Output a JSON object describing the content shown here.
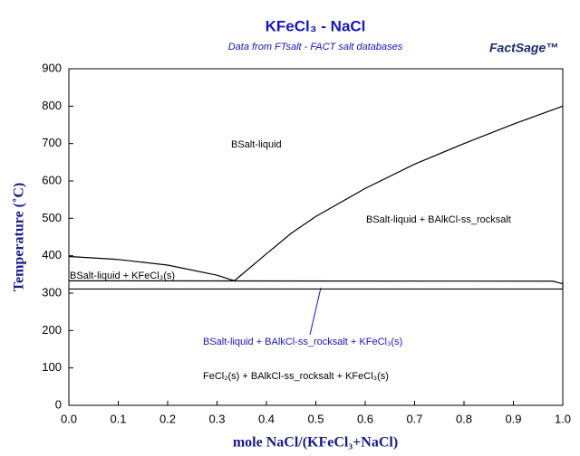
{
  "chart_data": {
    "type": "line",
    "title": "KFeCl₃ - NaCl",
    "subtitle": "Data from FTsalt - FACT salt databases",
    "logo": "FactSage™",
    "xlabel": "mole NaCl/(KFeCl₃+NaCl)",
    "ylabel": "Temperature (˚C)",
    "xlim": [
      0,
      1
    ],
    "ylim": [
      0,
      900
    ],
    "xticks": [
      {
        "value": 0,
        "label": "0.0"
      },
      0.1,
      0.2,
      0.3,
      0.4,
      0.5,
      0.6,
      0.7,
      0.8,
      0.9,
      {
        "value": 1,
        "label": "1.0"
      }
    ],
    "yticks": [
      0,
      100,
      200,
      300,
      400,
      500,
      600,
      700,
      800,
      900
    ],
    "series": [
      {
        "color": "#000000",
        "x": [
          0,
          0.1,
          0.2,
          0.3,
          0.335
        ],
        "values": [
          398,
          390,
          375,
          348,
          333
        ]
      },
      {
        "color": "#000000",
        "x": [
          0.335,
          0.4,
          0.45,
          0.5,
          0.6,
          0.7,
          0.8,
          0.9,
          1.0
        ],
        "values": [
          333,
          405,
          460,
          505,
          580,
          645,
          700,
          752,
          800
        ]
      },
      {
        "color": "#000000",
        "x": [
          0,
          0.98,
          1.0
        ],
        "values": [
          333,
          332,
          325
        ]
      },
      {
        "color": "#000000",
        "x": [
          0,
          1.0
        ],
        "values": [
          311,
          311
        ]
      },
      {
        "color": "#000000",
        "x": [
          1.0,
          1.0
        ],
        "values": [
          311,
          333
        ]
      }
    ],
    "annotations": [
      "BSalt-liquid",
      "BSalt-liquid + BAlkCl-ss_rocksalt",
      "BSalt-liquid + KFeCl₃(s)",
      "BSalt-liquid + BAlkCl-ss_rocksalt + KFeCl₃(s)",
      "FeCl₂(s) + BAlkCl-ss_rocksalt + KFeCl₃(s)"
    ]
  }
}
